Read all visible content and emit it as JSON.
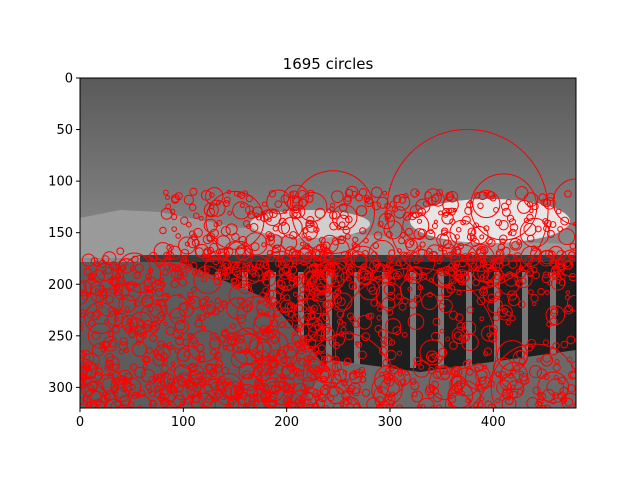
{
  "chart_data": {
    "type": "scatter",
    "title": "1695 circles",
    "xlabel": "",
    "ylabel": "",
    "xlim": [
      0,
      480
    ],
    "ylim": [
      320,
      0
    ],
    "y_axis_inverted": true,
    "grid": false,
    "legend": "none",
    "x_ticks": [
      0,
      100,
      200,
      300,
      400
    ],
    "y_ticks": [
      0,
      50,
      100,
      150,
      200,
      250,
      300
    ],
    "background_image": "grayscale photo: cloudy sky, distant hills, a viaduct with dark arches, scrubby foreground vegetation",
    "circle_color": "#ff0000",
    "circle_count": 1695,
    "representative_circles": [
      {
        "x": 375,
        "y": 128,
        "r": 78
      },
      {
        "x": 245,
        "y": 130,
        "r": 40
      },
      {
        "x": 150,
        "y": 138,
        "r": 28
      },
      {
        "x": 410,
        "y": 125,
        "r": 32
      },
      {
        "x": 325,
        "y": 262,
        "r": 78
      },
      {
        "x": 258,
        "y": 290,
        "r": 42
      },
      {
        "x": 440,
        "y": 300,
        "r": 42
      },
      {
        "x": 480,
        "y": 120,
        "r": 22
      },
      {
        "x": 225,
        "y": 125,
        "r": 14
      },
      {
        "x": 256,
        "y": 135,
        "r": 12
      },
      {
        "x": 370,
        "y": 150,
        "r": 12
      },
      {
        "x": 440,
        "y": 150,
        "r": 14
      },
      {
        "x": 205,
        "y": 145,
        "r": 10
      },
      {
        "x": 60,
        "y": 190,
        "r": 18
      },
      {
        "x": 120,
        "y": 260,
        "r": 15
      },
      {
        "x": 100,
        "y": 300,
        "r": 12
      },
      {
        "x": 40,
        "y": 300,
        "r": 10
      },
      {
        "x": 20,
        "y": 250,
        "r": 12
      },
      {
        "x": 170,
        "y": 230,
        "r": 18
      },
      {
        "x": 185,
        "y": 300,
        "r": 14
      },
      {
        "x": 320,
        "y": 205,
        "r": 10
      },
      {
        "x": 280,
        "y": 205,
        "r": 10
      },
      {
        "x": 230,
        "y": 200,
        "r": 9
      },
      {
        "x": 415,
        "y": 200,
        "r": 10
      },
      {
        "x": 350,
        "y": 195,
        "r": 8
      },
      {
        "x": 385,
        "y": 290,
        "r": 12
      },
      {
        "x": 300,
        "y": 300,
        "r": 9
      },
      {
        "x": 460,
        "y": 230,
        "r": 9
      },
      {
        "x": 200,
        "y": 270,
        "r": 10
      },
      {
        "x": 70,
        "y": 230,
        "r": 11
      }
    ]
  }
}
